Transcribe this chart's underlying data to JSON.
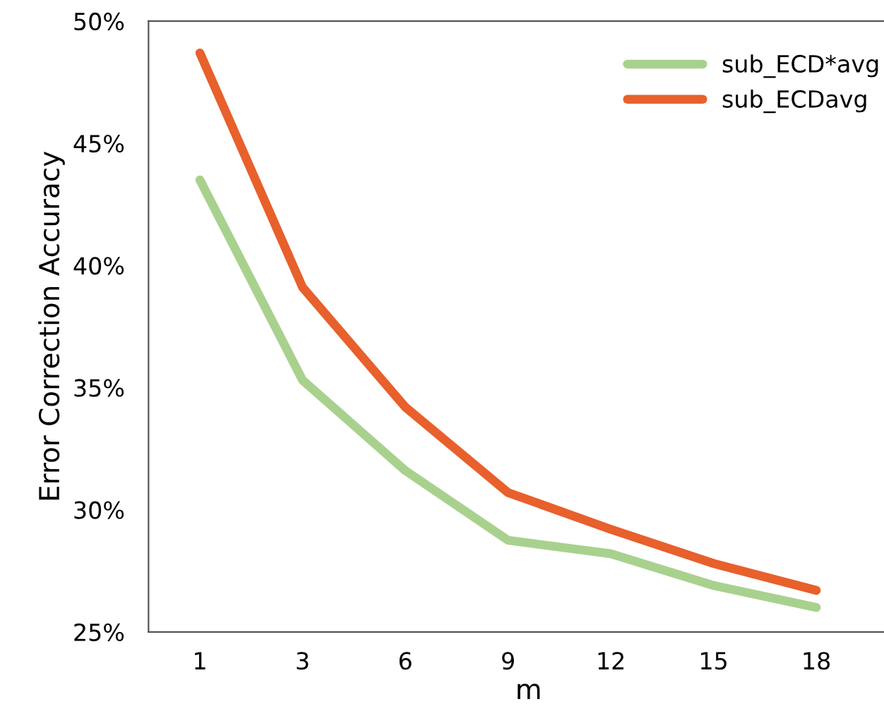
{
  "chart_data": {
    "type": "line",
    "xlabel": "m",
    "ylabel": "Error Correction Accuracy",
    "categories": [
      "1",
      "3",
      "6",
      "9",
      "12",
      "15",
      "18"
    ],
    "series": [
      {
        "name": "sub_ECD*avg",
        "color": "#a9d18e",
        "values": [
          43.5,
          35.3,
          31.6,
          28.75,
          28.2,
          26.9,
          26.0
        ]
      },
      {
        "name": "sub_ECDavg",
        "color": "#e8602c",
        "values": [
          48.7,
          39.1,
          34.2,
          30.7,
          29.2,
          27.8,
          26.7
        ]
      }
    ],
    "ylim": [
      25,
      50
    ],
    "yticks": [
      {
        "value": 25,
        "label": "25%"
      },
      {
        "value": 30,
        "label": "30%"
      },
      {
        "value": 35,
        "label": "35%"
      },
      {
        "value": 40,
        "label": "40%"
      },
      {
        "value": 45,
        "label": "45%"
      },
      {
        "value": 50,
        "label": "50%"
      }
    ],
    "grid": false,
    "legend": "top right",
    "marker": "none",
    "line_style": "solid"
  }
}
